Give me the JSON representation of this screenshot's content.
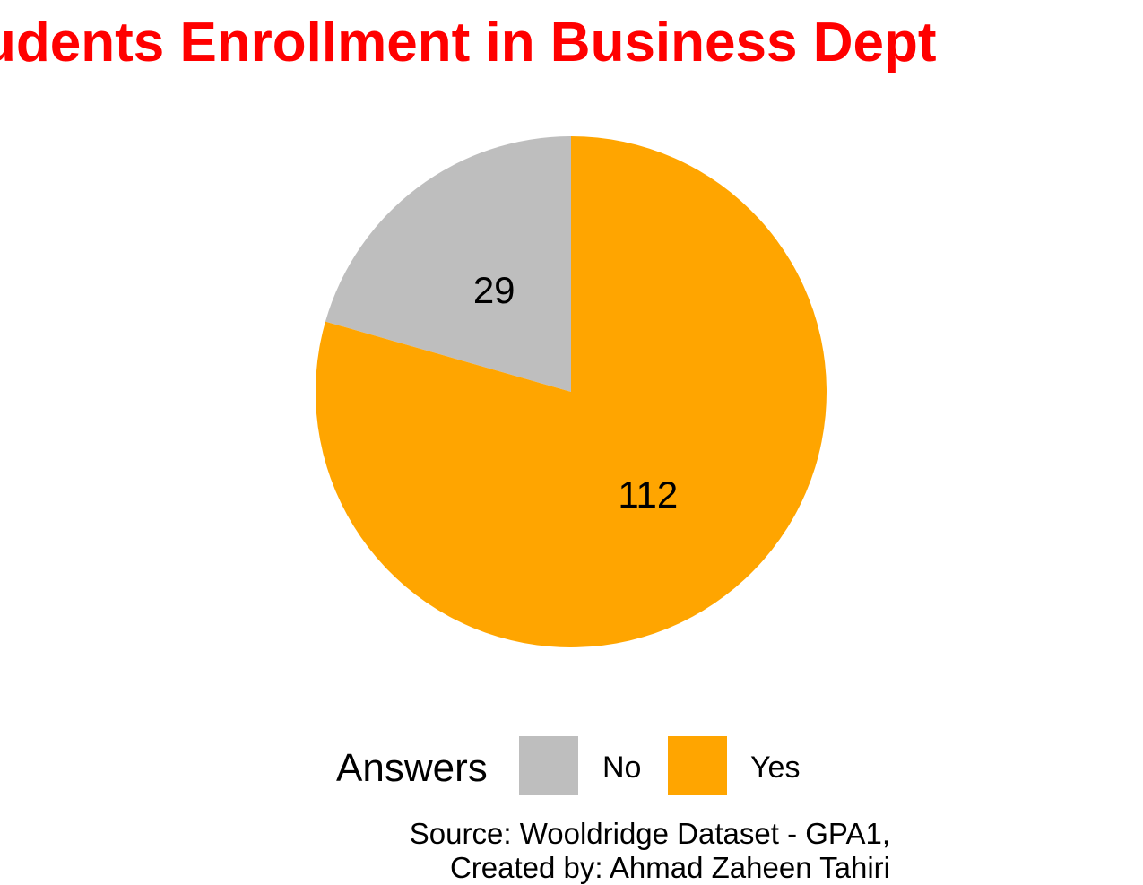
{
  "chart_data": {
    "type": "pie",
    "title": "udents Enrollment in Business Dept",
    "categories": [
      "No",
      "Yes"
    ],
    "values": [
      29,
      112
    ],
    "colors": [
      "#BEBEBE",
      "#FFA500"
    ],
    "slice_labels": [
      "29",
      "112"
    ],
    "start": "12 o'clock",
    "direction": "counter-clockwise for No, remainder Yes",
    "legend": {
      "title": "Answers",
      "placement": "bottom",
      "labels": [
        "No",
        "Yes"
      ]
    },
    "caption": {
      "line1": "Source: Wooldridge Dataset - GPA1,",
      "line2": "Created by: Ahmad Zaheen Tahiri"
    }
  }
}
